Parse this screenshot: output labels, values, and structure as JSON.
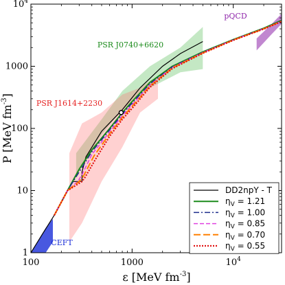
{
  "chart_data": {
    "type": "line",
    "xlabel_main": "ε [MeV fm",
    "xlabel_exp": "-3",
    "xlabel_close": "]",
    "ylabel_main": "P [MeV fm",
    "ylabel_exp": "-3",
    "ylabel_close": "]",
    "xscale": "log",
    "yscale": "log",
    "xlim": [
      100,
      30000
    ],
    "ylim": [
      1,
      10000
    ],
    "x_ticks": [
      {
        "value": 100,
        "label": "100"
      },
      {
        "value": 1000,
        "label": "1000"
      },
      {
        "value": 10000,
        "label": "10",
        "exp": "4"
      }
    ],
    "y_ticks": [
      {
        "value": 1,
        "label": "1"
      },
      {
        "value": 10,
        "label": "10"
      },
      {
        "value": 100,
        "label": "100"
      },
      {
        "value": 1000,
        "label": "1000"
      },
      {
        "value": 10000,
        "label": "10",
        "exp": "4"
      }
    ],
    "bands": [
      {
        "label": "PSR J0740+6620",
        "color": "#3cb43c",
        "opacity": 0.3,
        "label_color": "#1a8a1a",
        "upper": [
          [
            280,
            40
          ],
          [
            500,
            140
          ],
          [
            800,
            400
          ],
          [
            1500,
            1000
          ],
          [
            3000,
            2000
          ],
          [
            5000,
            4300
          ]
        ],
        "lower": [
          [
            5000,
            900
          ],
          [
            3000,
            800
          ],
          [
            1500,
            450
          ],
          [
            800,
            200
          ],
          [
            500,
            80
          ],
          [
            280,
            18
          ]
        ]
      },
      {
        "label": "PSR J1614+2230",
        "color": "#ff7070",
        "opacity": 0.32,
        "label_color": "#e52020",
        "upper": [
          [
            240,
            40
          ],
          [
            320,
            120
          ],
          [
            500,
            180
          ],
          [
            800,
            350
          ],
          [
            1200,
            450
          ],
          [
            1800,
            700
          ]
        ],
        "lower": [
          [
            1800,
            300
          ],
          [
            1200,
            180
          ],
          [
            800,
            50
          ],
          [
            500,
            14
          ],
          [
            320,
            3
          ],
          [
            240,
            1.5
          ]
        ]
      },
      {
        "label": "CEFT",
        "color": "#1a2ed8",
        "opacity": 0.8,
        "label_color": "#1a2ed8",
        "upper": [
          [
            100,
            1
          ],
          [
            140,
            2.5
          ],
          [
            165,
            3.5
          ]
        ],
        "lower": [
          [
            165,
            1.5
          ],
          [
            140,
            1
          ],
          [
            125,
            1
          ]
        ]
      },
      {
        "label": "pQCD",
        "color": "#8e24aa",
        "opacity": 0.55,
        "label_color": "#8e24aa",
        "upper": [
          [
            17000,
            2800
          ],
          [
            24000,
            4800
          ],
          [
            30000,
            7000
          ]
        ],
        "lower": [
          [
            30000,
            4800
          ],
          [
            24000,
            3300
          ],
          [
            17000,
            1800
          ]
        ]
      }
    ],
    "series": [
      {
        "name": "DD2npY - T",
        "color": "#000000",
        "dash": "",
        "width": 1.2,
        "points": [
          [
            100,
            1
          ],
          [
            130,
            2
          ],
          [
            170,
            4
          ],
          [
            230,
            10
          ],
          [
            260,
            14
          ],
          [
            320,
            14
          ],
          [
            320,
            20
          ],
          [
            350,
            35
          ],
          [
            500,
            90
          ],
          [
            800,
            200
          ],
          [
            1200,
            450
          ],
          [
            2000,
            1000
          ],
          [
            3000,
            1600
          ],
          [
            5000,
            2500
          ]
        ]
      },
      {
        "name": "η",
        "sub": "V",
        "eq": " = 1.21",
        "color": "#1a8a1a",
        "dash": "",
        "width": 2,
        "points": [
          [
            170,
            4
          ],
          [
            230,
            10
          ],
          [
            300,
            22
          ],
          [
            400,
            45
          ],
          [
            600,
            100
          ],
          [
            800,
            180
          ],
          [
            1000,
            270
          ],
          [
            1500,
            550
          ],
          [
            2500,
            1000
          ],
          [
            5000,
            1700
          ],
          [
            10000,
            2700
          ],
          [
            20000,
            4100
          ],
          [
            30000,
            5500
          ]
        ]
      },
      {
        "name": "η",
        "sub": "V",
        "eq": " = 1.00",
        "color": "#1a2a8a",
        "dash": "8 3 2 3",
        "width": 1.5,
        "points": [
          [
            170,
            4
          ],
          [
            230,
            10
          ],
          [
            300,
            20
          ],
          [
            400,
            42
          ],
          [
            600,
            95
          ],
          [
            800,
            170
          ],
          [
            1000,
            255
          ],
          [
            1500,
            520
          ],
          [
            2500,
            980
          ],
          [
            5000,
            1680
          ],
          [
            10000,
            2680
          ],
          [
            20000,
            4050
          ],
          [
            30000,
            5400
          ]
        ]
      },
      {
        "name": "η",
        "sub": "V",
        "eq": " = 0.85",
        "color": "#e040e0",
        "dash": "6 3",
        "width": 1.5,
        "points": [
          [
            170,
            4
          ],
          [
            230,
            10
          ],
          [
            290,
            14
          ],
          [
            320,
            18
          ],
          [
            400,
            38
          ],
          [
            600,
            88
          ],
          [
            800,
            160
          ],
          [
            1000,
            240
          ],
          [
            1500,
            500
          ],
          [
            2500,
            960
          ],
          [
            5000,
            1660
          ],
          [
            10000,
            2660
          ],
          [
            20000,
            4020
          ],
          [
            30000,
            5350
          ]
        ]
      },
      {
        "name": "η",
        "sub": "V",
        "eq": " = 0.70",
        "color": "#ff8000",
        "dash": "10 4",
        "width": 2,
        "points": [
          [
            170,
            4
          ],
          [
            230,
            10
          ],
          [
            300,
            14
          ],
          [
            330,
            17
          ],
          [
            420,
            36
          ],
          [
            600,
            82
          ],
          [
            800,
            150
          ],
          [
            1000,
            225
          ],
          [
            1500,
            480
          ],
          [
            2500,
            940
          ],
          [
            5000,
            1640
          ],
          [
            10000,
            2640
          ],
          [
            20000,
            4000
          ],
          [
            30000,
            5300
          ]
        ]
      },
      {
        "name": "η",
        "sub": "V",
        "eq": " = 0.55",
        "color": "#e01010",
        "dash": "2 2",
        "width": 2.2,
        "points": [
          [
            170,
            4
          ],
          [
            230,
            10
          ],
          [
            320,
            14
          ],
          [
            340,
            16
          ],
          [
            450,
            35
          ],
          [
            600,
            75
          ],
          [
            800,
            140
          ],
          [
            1000,
            210
          ],
          [
            1500,
            460
          ],
          [
            2500,
            920
          ],
          [
            5000,
            1620
          ],
          [
            10000,
            2620
          ],
          [
            20000,
            3980
          ],
          [
            30000,
            5250
          ]
        ]
      }
    ],
    "marker": {
      "x": 780,
      "y": 180,
      "shape": "open-circle"
    },
    "legend": "bottom-right",
    "grid": false
  }
}
